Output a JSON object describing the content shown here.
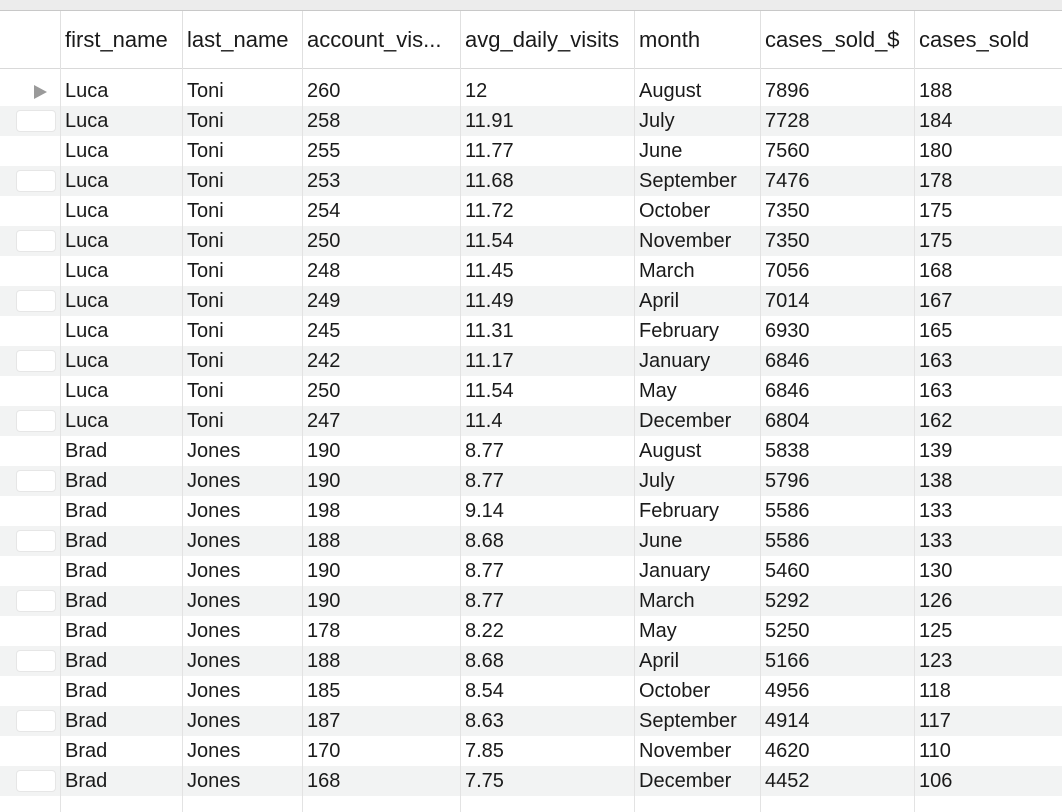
{
  "columns": [
    {
      "label": "first_name",
      "key": "first_name"
    },
    {
      "label": "last_name",
      "key": "last_name"
    },
    {
      "label": "account_vis...",
      "key": "account_visits"
    },
    {
      "label": "avg_daily_visits",
      "key": "avg_daily_visits"
    },
    {
      "label": "month",
      "key": "month"
    },
    {
      "label": "cases_sold_$",
      "key": "cases_sold_dollars"
    },
    {
      "label": "cases_sold",
      "key": "cases_sold"
    }
  ],
  "rows": [
    [
      "Luca",
      "Toni",
      "260",
      "12",
      "August",
      "7896",
      "188"
    ],
    [
      "Luca",
      "Toni",
      "258",
      "11.91",
      "July",
      "7728",
      "184"
    ],
    [
      "Luca",
      "Toni",
      "255",
      "11.77",
      "June",
      "7560",
      "180"
    ],
    [
      "Luca",
      "Toni",
      "253",
      "11.68",
      "September",
      "7476",
      "178"
    ],
    [
      "Luca",
      "Toni",
      "254",
      "11.72",
      "October",
      "7350",
      "175"
    ],
    [
      "Luca",
      "Toni",
      "250",
      "11.54",
      "November",
      "7350",
      "175"
    ],
    [
      "Luca",
      "Toni",
      "248",
      "11.45",
      "March",
      "7056",
      "168"
    ],
    [
      "Luca",
      "Toni",
      "249",
      "11.49",
      "April",
      "7014",
      "167"
    ],
    [
      "Luca",
      "Toni",
      "245",
      "11.31",
      "February",
      "6930",
      "165"
    ],
    [
      "Luca",
      "Toni",
      "242",
      "11.17",
      "January",
      "6846",
      "163"
    ],
    [
      "Luca",
      "Toni",
      "250",
      "11.54",
      "May",
      "6846",
      "163"
    ],
    [
      "Luca",
      "Toni",
      "247",
      "11.4",
      "December",
      "6804",
      "162"
    ],
    [
      "Brad",
      "Jones",
      "190",
      "8.77",
      "August",
      "5838",
      "139"
    ],
    [
      "Brad",
      "Jones",
      "190",
      "8.77",
      "July",
      "5796",
      "138"
    ],
    [
      "Brad",
      "Jones",
      "198",
      "9.14",
      "February",
      "5586",
      "133"
    ],
    [
      "Brad",
      "Jones",
      "188",
      "8.68",
      "June",
      "5586",
      "133"
    ],
    [
      "Brad",
      "Jones",
      "190",
      "8.77",
      "January",
      "5460",
      "130"
    ],
    [
      "Brad",
      "Jones",
      "190",
      "8.77",
      "March",
      "5292",
      "126"
    ],
    [
      "Brad",
      "Jones",
      "178",
      "8.22",
      "May",
      "5250",
      "125"
    ],
    [
      "Brad",
      "Jones",
      "188",
      "8.68",
      "April",
      "5166",
      "123"
    ],
    [
      "Brad",
      "Jones",
      "185",
      "8.54",
      "October",
      "4956",
      "118"
    ],
    [
      "Brad",
      "Jones",
      "187",
      "8.63",
      "September",
      "4914",
      "117"
    ],
    [
      "Brad",
      "Jones",
      "170",
      "7.85",
      "November",
      "4620",
      "110"
    ],
    [
      "Brad",
      "Jones",
      "168",
      "7.75",
      "December",
      "4452",
      "106"
    ]
  ],
  "selected_row_index": 0
}
